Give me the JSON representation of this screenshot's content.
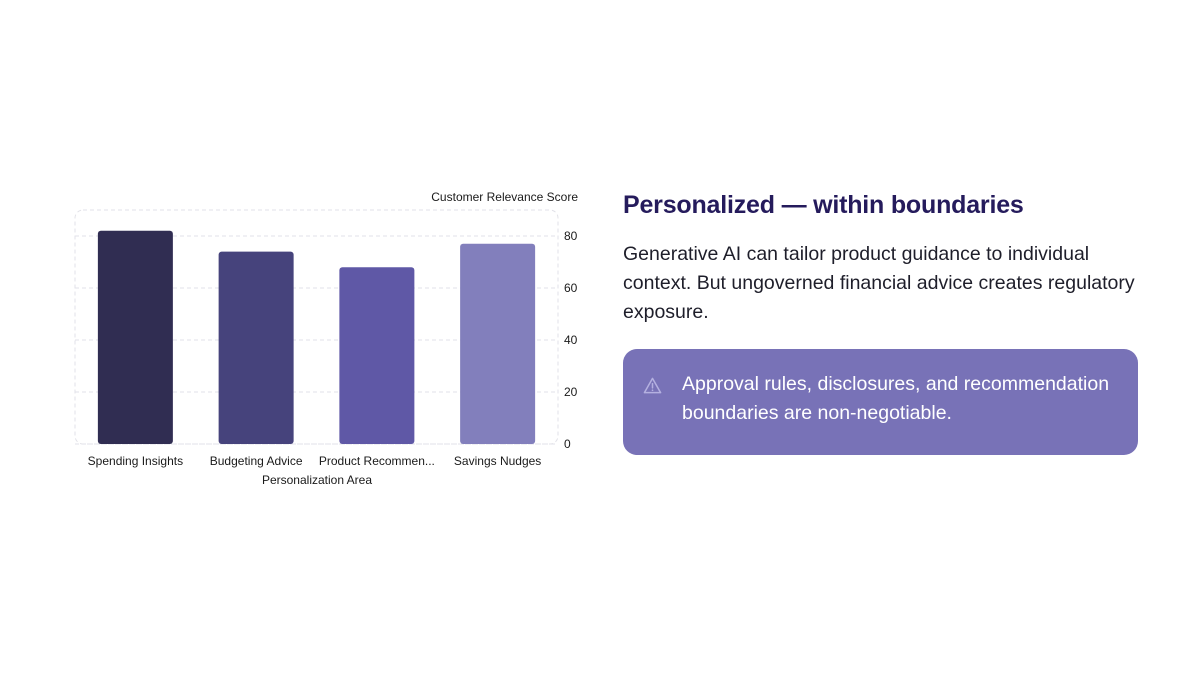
{
  "chart_data": {
    "type": "bar",
    "categories": [
      "Spending Insights",
      "Budgeting Advice",
      "Product Recommen...",
      "Savings Nudges"
    ],
    "values": [
      82,
      74,
      68,
      77
    ],
    "colors": [
      "#302d52",
      "#46437c",
      "#5f58a6",
      "#827fbc"
    ],
    "ylabel": "Customer Relevance Score",
    "xlabel": "Personalization Area",
    "ylim": [
      0,
      90
    ],
    "yticks": [
      0,
      20,
      40,
      60,
      80
    ],
    "grid": true,
    "y_axis_side": "right"
  },
  "panel": {
    "headline": "Personalized — within boundaries",
    "body": "Generative AI can tailor product guidance to individual context. But ungoverned financial advice creates regulatory exposure.",
    "callout": {
      "icon": "warning-icon",
      "text": "Approval rules, disclosures, and recommendation boundaries are non-negotiable.",
      "background": "#7872b7"
    }
  }
}
